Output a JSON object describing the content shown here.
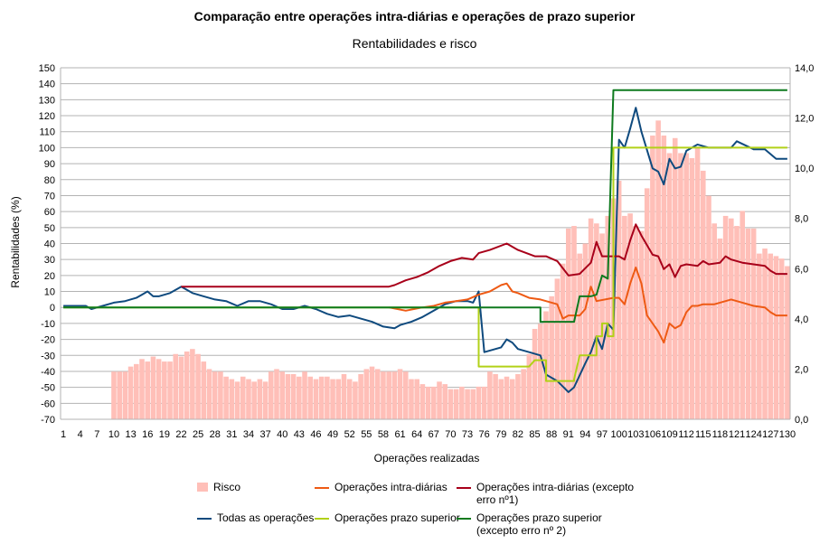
{
  "chart_data": {
    "type": "line",
    "title": "Comparação entre operações intra-diárias e operações de prazo superior",
    "subtitle": "Rentabilidades e risco",
    "xlabel": "Operações realizadas",
    "ylabel": "Rentabilidades (%)",
    "ylim": [
      -70,
      150
    ],
    "y2lim": [
      0,
      14
    ],
    "yticks": [
      "150",
      "140",
      "130",
      "120",
      "110",
      "100",
      "90",
      "80",
      "70",
      "60",
      "50",
      "40",
      "30",
      "20",
      "10",
      "0",
      "-10",
      "-20",
      "-30",
      "-40",
      "-50",
      "-60",
      "-70"
    ],
    "y2ticks": [
      "14,0",
      "12,0",
      "10,0",
      "8,0",
      "6,0",
      "4,0",
      "2,0",
      "0,0"
    ],
    "xticks": [
      "1",
      "4",
      "7",
      "10",
      "13",
      "16",
      "19",
      "22",
      "25",
      "28",
      "31",
      "34",
      "37",
      "40",
      "43",
      "46",
      "49",
      "52",
      "55",
      "58",
      "61",
      "64",
      "67",
      "70",
      "73",
      "76",
      "79",
      "82",
      "85",
      "88",
      "91",
      "94",
      "97",
      "100",
      "103",
      "106",
      "109",
      "112",
      "115",
      "118",
      "121",
      "124",
      "127",
      "130"
    ],
    "legend": [
      {
        "name": "Risco",
        "color": "#ffbfb8",
        "kind": "bar"
      },
      {
        "name": "Operações intra-diárias",
        "color": "#ee5a14",
        "kind": "line"
      },
      {
        "name": "Operações intra-diárias (excepto erro nº1)",
        "color": "#a8001a",
        "kind": "line"
      },
      {
        "name": "Todas as operações",
        "color": "#0f4a7e",
        "kind": "line"
      },
      {
        "name": "Operações prazo superior",
        "color": "#b2d118",
        "kind": "line"
      },
      {
        "name": "Operações prazo superior (excepto erro nº 2)",
        "color": "#0e7a1e",
        "kind": "line"
      }
    ],
    "series": [
      {
        "name": "Todas as operações",
        "color": "#0f4a7e",
        "axis": "left",
        "points": [
          [
            1,
            1
          ],
          [
            5,
            1
          ],
          [
            6,
            -1
          ],
          [
            8,
            1
          ],
          [
            10,
            3
          ],
          [
            12,
            4
          ],
          [
            14,
            6
          ],
          [
            15,
            8
          ],
          [
            16,
            10
          ],
          [
            17,
            7
          ],
          [
            18,
            7
          ],
          [
            20,
            9
          ],
          [
            22,
            13
          ],
          [
            24,
            9
          ],
          [
            26,
            7
          ],
          [
            28,
            5
          ],
          [
            30,
            4
          ],
          [
            32,
            1
          ],
          [
            34,
            4
          ],
          [
            36,
            4
          ],
          [
            38,
            2
          ],
          [
            40,
            -1
          ],
          [
            42,
            -1
          ],
          [
            44,
            1
          ],
          [
            46,
            -1
          ],
          [
            48,
            -4
          ],
          [
            50,
            -6
          ],
          [
            52,
            -5
          ],
          [
            54,
            -7
          ],
          [
            56,
            -9
          ],
          [
            58,
            -12
          ],
          [
            60,
            -13
          ],
          [
            61,
            -11
          ],
          [
            63,
            -9
          ],
          [
            65,
            -6
          ],
          [
            67,
            -2
          ],
          [
            69,
            2
          ],
          [
            71,
            4
          ],
          [
            73,
            4
          ],
          [
            74,
            3
          ],
          [
            75,
            10
          ],
          [
            76,
            -28
          ],
          [
            78,
            -26
          ],
          [
            79,
            -25
          ],
          [
            80,
            -20
          ],
          [
            81,
            -22
          ],
          [
            82,
            -26
          ],
          [
            84,
            -28
          ],
          [
            86,
            -30
          ],
          [
            87,
            -42
          ],
          [
            89,
            -46
          ],
          [
            91,
            -53
          ],
          [
            92,
            -50
          ],
          [
            94,
            -35
          ],
          [
            95,
            -28
          ],
          [
            96,
            -18
          ],
          [
            97,
            -26
          ],
          [
            98,
            -10
          ],
          [
            99,
            -14
          ],
          [
            100,
            105
          ],
          [
            101,
            100
          ],
          [
            102,
            112
          ],
          [
            103,
            125
          ],
          [
            104,
            110
          ],
          [
            106,
            87
          ],
          [
            107,
            85
          ],
          [
            108,
            77
          ],
          [
            109,
            93
          ],
          [
            110,
            87
          ],
          [
            111,
            88
          ],
          [
            112,
            98
          ],
          [
            114,
            102
          ],
          [
            116,
            100
          ],
          [
            120,
            100
          ],
          [
            121,
            104
          ],
          [
            124,
            99
          ],
          [
            126,
            99
          ],
          [
            128,
            93
          ],
          [
            130,
            93
          ]
        ]
      },
      {
        "name": "Operações intra-diárias (excepto erro nº1)",
        "color": "#a8001a",
        "axis": "left",
        "points": [
          [
            22,
            13
          ],
          [
            59,
            13
          ],
          [
            60,
            14
          ],
          [
            62,
            17
          ],
          [
            64,
            19
          ],
          [
            66,
            22
          ],
          [
            68,
            26
          ],
          [
            70,
            29
          ],
          [
            72,
            31
          ],
          [
            74,
            30
          ],
          [
            75,
            34
          ],
          [
            77,
            36
          ],
          [
            80,
            40
          ],
          [
            82,
            36
          ],
          [
            85,
            32
          ],
          [
            87,
            32
          ],
          [
            89,
            29
          ],
          [
            91,
            20
          ],
          [
            93,
            21
          ],
          [
            95,
            28
          ],
          [
            96,
            41
          ],
          [
            97,
            32
          ],
          [
            100,
            32
          ],
          [
            101,
            30
          ],
          [
            102,
            42
          ],
          [
            103,
            52
          ],
          [
            104,
            45
          ],
          [
            106,
            33
          ],
          [
            107,
            32
          ],
          [
            108,
            24
          ],
          [
            109,
            27
          ],
          [
            110,
            19
          ],
          [
            111,
            26
          ],
          [
            112,
            27
          ],
          [
            114,
            26
          ],
          [
            115,
            29
          ],
          [
            116,
            27
          ],
          [
            118,
            28
          ],
          [
            119,
            32
          ],
          [
            120,
            30
          ],
          [
            122,
            28
          ],
          [
            124,
            27
          ],
          [
            126,
            26
          ],
          [
            127,
            23
          ],
          [
            128,
            21
          ],
          [
            130,
            21
          ]
        ]
      },
      {
        "name": "Operações intra-diárias",
        "color": "#ee5a14",
        "axis": "left",
        "points": [
          [
            59,
            0
          ],
          [
            62,
            -2
          ],
          [
            65,
            0
          ],
          [
            67,
            1
          ],
          [
            69,
            3
          ],
          [
            71,
            4
          ],
          [
            73,
            5
          ],
          [
            75,
            8
          ],
          [
            77,
            10
          ],
          [
            79,
            14
          ],
          [
            80,
            15
          ],
          [
            81,
            10
          ],
          [
            82,
            9
          ],
          [
            84,
            6
          ],
          [
            86,
            5
          ],
          [
            88,
            3
          ],
          [
            89,
            2
          ],
          [
            90,
            -7
          ],
          [
            91,
            -5
          ],
          [
            93,
            -5
          ],
          [
            94,
            -1
          ],
          [
            95,
            13
          ],
          [
            96,
            4
          ],
          [
            99,
            6
          ],
          [
            100,
            6
          ],
          [
            101,
            2
          ],
          [
            102,
            15
          ],
          [
            103,
            25
          ],
          [
            104,
            15
          ],
          [
            105,
            -5
          ],
          [
            107,
            -15
          ],
          [
            108,
            -22
          ],
          [
            109,
            -10
          ],
          [
            110,
            -13
          ],
          [
            111,
            -11
          ],
          [
            112,
            -3
          ],
          [
            113,
            1
          ],
          [
            114,
            1
          ],
          [
            115,
            2
          ],
          [
            117,
            2
          ],
          [
            120,
            5
          ],
          [
            122,
            3
          ],
          [
            124,
            1
          ],
          [
            126,
            0
          ],
          [
            127,
            -3
          ],
          [
            128,
            -5
          ],
          [
            130,
            -5
          ]
        ]
      },
      {
        "name": "Operações prazo superior",
        "color": "#b2d118",
        "axis": "left",
        "points": [
          [
            1,
            0
          ],
          [
            75,
            0
          ],
          [
            75,
            -37
          ],
          [
            84,
            -37
          ],
          [
            85,
            -33
          ],
          [
            87,
            -33
          ],
          [
            87,
            -46
          ],
          [
            92,
            -46
          ],
          [
            92,
            -45
          ],
          [
            93,
            -30
          ],
          [
            96,
            -30
          ],
          [
            96,
            -18
          ],
          [
            97,
            -18
          ],
          [
            97,
            -10
          ],
          [
            98,
            -10
          ],
          [
            98,
            -18
          ],
          [
            99,
            -18
          ],
          [
            99,
            100
          ],
          [
            130,
            100
          ]
        ]
      },
      {
        "name": "Operações prazo superior (excepto erro nº 2)",
        "color": "#0e7a1e",
        "axis": "left",
        "points": [
          [
            1,
            0
          ],
          [
            86,
            0
          ],
          [
            86,
            -9
          ],
          [
            92,
            -9
          ],
          [
            92,
            -9
          ],
          [
            93,
            7
          ],
          [
            95,
            7
          ],
          [
            96,
            8
          ],
          [
            97,
            20
          ],
          [
            98,
            18
          ],
          [
            98,
            18
          ],
          [
            99,
            136
          ],
          [
            130,
            136
          ]
        ]
      }
    ],
    "risk": {
      "name": "Risco",
      "color": "#ffbfb8",
      "axis": "right",
      "start": 10,
      "values": [
        1.9,
        1.9,
        1.9,
        2.1,
        2.2,
        2.4,
        2.3,
        2.5,
        2.4,
        2.3,
        2.3,
        2.6,
        2.5,
        2.7,
        2.8,
        2.6,
        2.3,
        2.0,
        1.9,
        1.9,
        1.7,
        1.6,
        1.5,
        1.7,
        1.6,
        1.5,
        1.6,
        1.5,
        1.9,
        2.0,
        1.9,
        1.8,
        1.8,
        1.7,
        1.9,
        1.7,
        1.6,
        1.7,
        1.7,
        1.6,
        1.6,
        1.8,
        1.6,
        1.5,
        1.8,
        2.0,
        2.1,
        2.0,
        1.9,
        1.9,
        1.9,
        2.0,
        1.9,
        1.6,
        1.6,
        1.4,
        1.3,
        1.3,
        1.5,
        1.4,
        1.2,
        1.2,
        1.3,
        1.2,
        1.2,
        1.3,
        1.3,
        1.9,
        1.8,
        1.6,
        1.7,
        1.6,
        1.8,
        2.0,
        2.6,
        3.6,
        3.8,
        4.3,
        4.9,
        5.6,
        6.2,
        7.6,
        7.7,
        6.6,
        7.0,
        8.0,
        7.8,
        7.4,
        8.1,
        8.8,
        9.5,
        8.1,
        8.2,
        7.7,
        7.5,
        9.2,
        11.3,
        11.9,
        11.3,
        10.6,
        11.2,
        10.6,
        10.6,
        10.4,
        10.8,
        9.9,
        8.9,
        7.8,
        7.2,
        8.1,
        8.0,
        7.7,
        8.3,
        7.6,
        7.6,
        6.6,
        6.8,
        6.6,
        6.5,
        6.4,
        6.1,
        5.8
      ]
    }
  }
}
